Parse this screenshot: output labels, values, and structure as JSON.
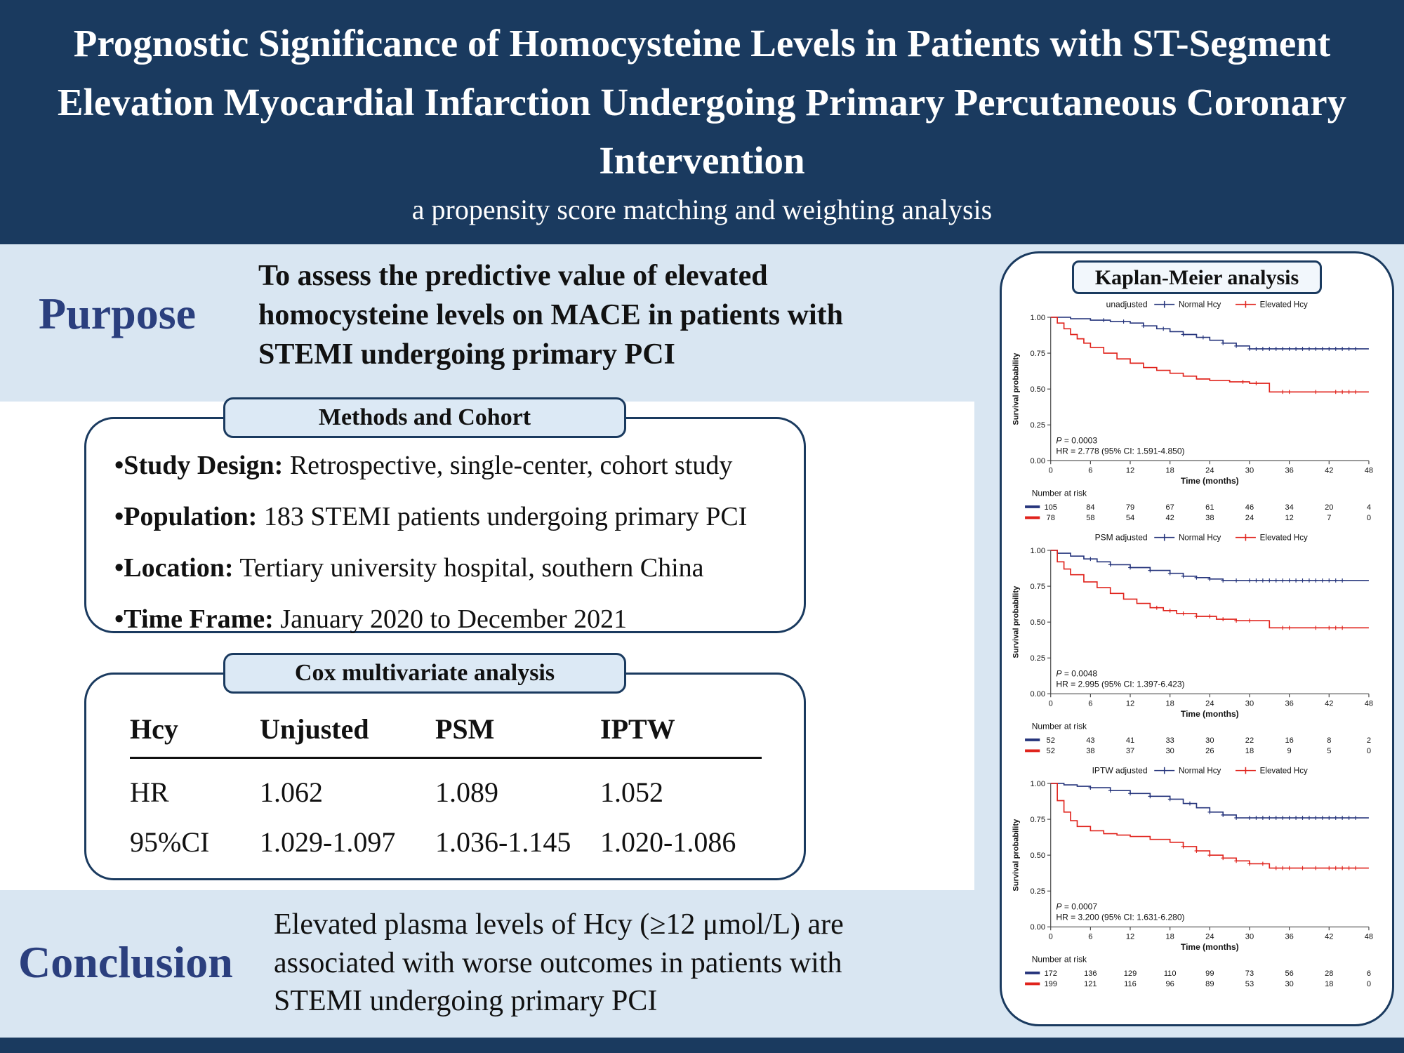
{
  "header": {
    "title": "Prognostic Significance of Homocysteine Levels in Patients with ST-Segment Elevation Myocardial Infarction Undergoing Primary Percutaneous Coronary Intervention",
    "subtitle": "a propensity score matching and weighting analysis"
  },
  "purpose": {
    "heading": "Purpose",
    "text": "To assess the predictive value of elevated homocysteine levels on MACE in patients with STEMI undergoing primary PCI"
  },
  "methods": {
    "title": "Methods and Cohort",
    "items": [
      {
        "label": "•Study Design:",
        "text": " Retrospective, single-center, cohort study"
      },
      {
        "label": "•Population:",
        "text": " 183 STEMI patients undergoing primary PCI"
      },
      {
        "label": "•Location:",
        "text": " Tertiary university hospital, southern China"
      },
      {
        "label": "•Time Frame:",
        "text": " January 2020 to December 2021"
      }
    ]
  },
  "cox": {
    "title": "Cox multivariate analysis",
    "headers": [
      "Hcy",
      "Unjusted",
      "PSM",
      "IPTW"
    ],
    "rows": [
      [
        "HR",
        "1.062",
        "1.089",
        "1.052"
      ],
      [
        "95%CI",
        "1.029-1.097",
        "1.036-1.145",
        "1.020-1.086"
      ]
    ]
  },
  "conclusion": {
    "heading": "Conclusion",
    "text": "Elevated plasma levels of Hcy (≥12 μmol/L) are associated with worse outcomes in patients with STEMI undergoing primary PCI"
  },
  "km_panel": {
    "title": "Kaplan-Meier  analysis"
  },
  "colors": {
    "navy": "#1a3a5f",
    "light_blue": "#d9e6f2",
    "heading_blue": "#2b3f7e",
    "km_blue": "#26357c",
    "km_red": "#e0231c"
  },
  "chart_data": [
    {
      "type": "line",
      "subtype": "kaplan-meier-step",
      "title": "unadjusted",
      "xlabel": "Time (months)",
      "ylabel": "Survival probability",
      "xlim": [
        0,
        48
      ],
      "ylim": [
        0,
        1
      ],
      "xticks": [
        0,
        6,
        12,
        18,
        24,
        30,
        36,
        42,
        48
      ],
      "yticks": [
        "1.00",
        "0.75",
        "0.50",
        "0.25",
        "0.00"
      ],
      "annotation": {
        "p": "P = 0.0003",
        "hr": "HR = 2.778 (95% CI: 1.591-4.850)"
      },
      "series": [
        {
          "name": "Normal Hcy",
          "color": "#26357c",
          "points": [
            [
              0,
              1.0
            ],
            [
              3,
              0.99
            ],
            [
              6,
              0.98
            ],
            [
              9,
              0.97
            ],
            [
              12,
              0.96
            ],
            [
              14,
              0.94
            ],
            [
              16,
              0.92
            ],
            [
              18,
              0.9
            ],
            [
              20,
              0.88
            ],
            [
              22,
              0.86
            ],
            [
              24,
              0.84
            ],
            [
              26,
              0.82
            ],
            [
              28,
              0.8
            ],
            [
              30,
              0.78
            ]
          ],
          "censors": [
            8,
            11,
            14,
            17,
            20,
            23,
            26,
            28,
            30,
            31,
            32,
            33,
            34,
            35,
            36,
            37,
            38,
            39,
            40,
            41,
            42,
            43,
            44,
            45,
            46
          ]
        },
        {
          "name": "Elevated Hcy",
          "color": "#e0231c",
          "points": [
            [
              0,
              1.0
            ],
            [
              1,
              0.96
            ],
            [
              2,
              0.92
            ],
            [
              3,
              0.88
            ],
            [
              4,
              0.85
            ],
            [
              5,
              0.82
            ],
            [
              6,
              0.79
            ],
            [
              8,
              0.75
            ],
            [
              10,
              0.71
            ],
            [
              12,
              0.68
            ],
            [
              14,
              0.65
            ],
            [
              16,
              0.63
            ],
            [
              18,
              0.61
            ],
            [
              20,
              0.59
            ],
            [
              22,
              0.57
            ],
            [
              24,
              0.56
            ],
            [
              27,
              0.55
            ],
            [
              30,
              0.54
            ],
            [
              33,
              0.48
            ]
          ],
          "censors": [
            29,
            31,
            35,
            36,
            40,
            43,
            44,
            45,
            46
          ]
        }
      ],
      "number_at_risk": {
        "label": "Number at risk",
        "rows": [
          {
            "name": "Normal Hcy",
            "color": "#26357c",
            "values": [
              105,
              84,
              79,
              67,
              61,
              46,
              34,
              20,
              4
            ]
          },
          {
            "name": "Elevated Hcy",
            "color": "#e0231c",
            "values": [
              78,
              58,
              54,
              42,
              38,
              24,
              12,
              7,
              0
            ]
          }
        ]
      }
    },
    {
      "type": "line",
      "subtype": "kaplan-meier-step",
      "title": "PSM adjusted",
      "xlabel": "Time (months)",
      "ylabel": "Survival probability",
      "xlim": [
        0,
        48
      ],
      "ylim": [
        0,
        1
      ],
      "xticks": [
        0,
        6,
        12,
        18,
        24,
        30,
        36,
        42,
        48
      ],
      "yticks": [
        "1.00",
        "0.75",
        "0.50",
        "0.25",
        "0.00"
      ],
      "annotation": {
        "p": "P = 0.0048",
        "hr": "HR = 2.995 (95% CI: 1.397-6.423)"
      },
      "series": [
        {
          "name": "Normal Hcy",
          "color": "#26357c",
          "points": [
            [
              0,
              1.0
            ],
            [
              1,
              0.98
            ],
            [
              3,
              0.96
            ],
            [
              5,
              0.94
            ],
            [
              7,
              0.92
            ],
            [
              9,
              0.9
            ],
            [
              12,
              0.88
            ],
            [
              15,
              0.86
            ],
            [
              18,
              0.84
            ],
            [
              20,
              0.82
            ],
            [
              22,
              0.81
            ],
            [
              24,
              0.8
            ],
            [
              26,
              0.79
            ]
          ],
          "censors": [
            6,
            9,
            12,
            15,
            18,
            20,
            22,
            24,
            26,
            28,
            30,
            31,
            32,
            33,
            34,
            35,
            36,
            37,
            38,
            39,
            40,
            41,
            42,
            43,
            44
          ]
        },
        {
          "name": "Elevated Hcy",
          "color": "#e0231c",
          "points": [
            [
              0,
              1.0
            ],
            [
              1,
              0.92
            ],
            [
              2,
              0.87
            ],
            [
              3,
              0.83
            ],
            [
              5,
              0.78
            ],
            [
              7,
              0.74
            ],
            [
              9,
              0.7
            ],
            [
              11,
              0.66
            ],
            [
              13,
              0.63
            ],
            [
              15,
              0.6
            ],
            [
              17,
              0.58
            ],
            [
              19,
              0.56
            ],
            [
              22,
              0.54
            ],
            [
              25,
              0.52
            ],
            [
              28,
              0.51
            ],
            [
              33,
              0.46
            ]
          ],
          "censors": [
            16,
            18,
            20,
            22,
            24,
            26,
            28,
            30,
            35,
            36,
            40,
            42,
            43,
            44
          ]
        }
      ],
      "number_at_risk": {
        "label": "Number at risk",
        "rows": [
          {
            "name": "Normal Hcy",
            "color": "#26357c",
            "values": [
              52,
              43,
              41,
              33,
              30,
              22,
              16,
              8,
              2
            ]
          },
          {
            "name": "Elevated Hcy",
            "color": "#e0231c",
            "values": [
              52,
              38,
              37,
              30,
              26,
              18,
              9,
              5,
              0
            ]
          }
        ]
      }
    },
    {
      "type": "line",
      "subtype": "kaplan-meier-step",
      "title": "IPTW adjusted",
      "xlabel": "Time (months)",
      "ylabel": "Survival probability",
      "xlim": [
        0,
        48
      ],
      "ylim": [
        0,
        1
      ],
      "xticks": [
        0,
        6,
        12,
        18,
        24,
        30,
        36,
        42,
        48
      ],
      "yticks": [
        "1.00",
        "0.75",
        "0.50",
        "0.25",
        "0.00"
      ],
      "annotation": {
        "p": "P = 0.0007",
        "hr": "HR = 3.200 (95% CI: 1.631-6.280)"
      },
      "series": [
        {
          "name": "Normal Hcy",
          "color": "#26357c",
          "points": [
            [
              0,
              1.0
            ],
            [
              2,
              0.99
            ],
            [
              4,
              0.98
            ],
            [
              6,
              0.97
            ],
            [
              9,
              0.95
            ],
            [
              12,
              0.93
            ],
            [
              15,
              0.91
            ],
            [
              18,
              0.89
            ],
            [
              20,
              0.86
            ],
            [
              22,
              0.83
            ],
            [
              24,
              0.8
            ],
            [
              26,
              0.78
            ],
            [
              28,
              0.76
            ]
          ],
          "censors": [
            6,
            9,
            12,
            15,
            18,
            21,
            24,
            26,
            28,
            30,
            31,
            32,
            33,
            34,
            35,
            36,
            37,
            38,
            39,
            40,
            41,
            42,
            43,
            44,
            45,
            46
          ]
        },
        {
          "name": "Elevated Hcy",
          "color": "#e0231c",
          "points": [
            [
              0,
              1.0
            ],
            [
              1,
              0.88
            ],
            [
              2,
              0.8
            ],
            [
              3,
              0.74
            ],
            [
              4,
              0.7
            ],
            [
              6,
              0.67
            ],
            [
              8,
              0.65
            ],
            [
              10,
              0.64
            ],
            [
              12,
              0.63
            ],
            [
              15,
              0.61
            ],
            [
              18,
              0.59
            ],
            [
              20,
              0.56
            ],
            [
              22,
              0.53
            ],
            [
              24,
              0.5
            ],
            [
              26,
              0.48
            ],
            [
              28,
              0.46
            ],
            [
              30,
              0.44
            ],
            [
              33,
              0.41
            ]
          ],
          "censors": [
            20,
            22,
            24,
            26,
            28,
            30,
            32,
            34,
            35,
            36,
            38,
            40,
            42,
            43,
            44,
            45,
            46
          ]
        }
      ],
      "number_at_risk": {
        "label": "Number at risk",
        "rows": [
          {
            "name": "Normal Hcy",
            "color": "#26357c",
            "values": [
              172,
              136,
              129,
              110,
              99,
              73,
              56,
              28,
              6
            ]
          },
          {
            "name": "Elevated Hcy",
            "color": "#e0231c",
            "values": [
              199,
              121,
              116,
              96,
              89,
              53,
              30,
              18,
              0
            ]
          }
        ]
      }
    }
  ]
}
